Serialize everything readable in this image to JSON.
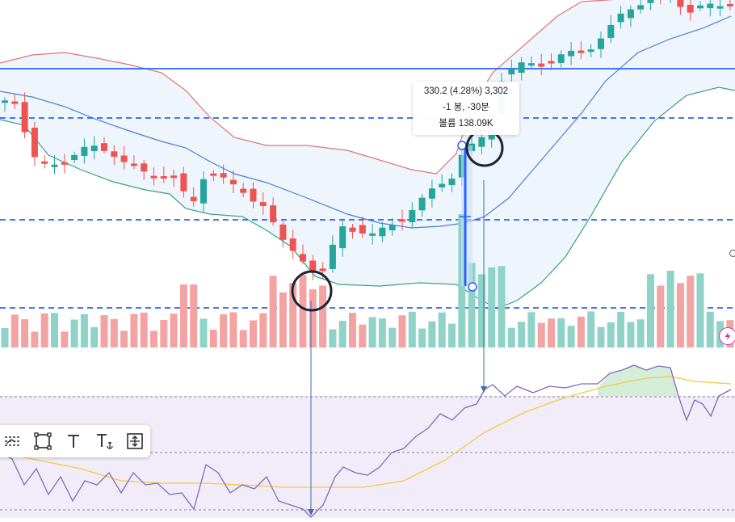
{
  "colors": {
    "up": "#26a69a",
    "down": "#ef5350",
    "up_volume": "#8fd3c8",
    "down_volume": "#f4a3a3",
    "bb_upper": "#e57373",
    "bb_middle": "#4a7fd6",
    "bb_lower": "#3aa37a",
    "bb_fill": "#e8f1fb",
    "horizontal_line": "#2962ff",
    "rsi_line": "#7e6bbd",
    "rsi_signal": "#f5c842",
    "rsi_fill": "#ede7f6",
    "annotation": "#1b2537"
  },
  "tooltip": {
    "line1": "330.2 (4.28%) 3,302",
    "line2": "-1 봉, -30분",
    "line3": "볼륨 138.09K"
  },
  "toolbar": {
    "icons": [
      "fib-lines-icon",
      "rectangle-icon",
      "text-icon",
      "anchored-text-icon",
      "price-range-icon"
    ]
  },
  "chart_data": {
    "type": "candlestick",
    "overlays": [
      "bollinger-bands",
      "volume",
      "rsi"
    ],
    "horizontal_lines": {
      "solid": 1,
      "dashed": 3
    },
    "grid": false,
    "rsi_levels_dashed": 3
  }
}
